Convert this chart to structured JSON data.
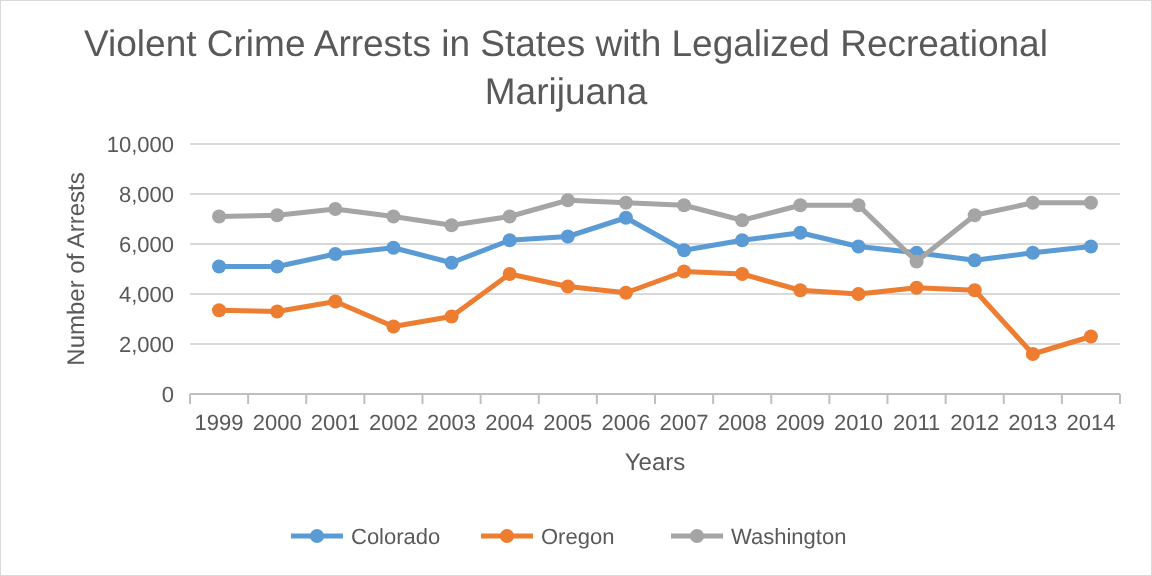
{
  "chart_data": {
    "type": "line",
    "title": "Violent Crime Arrests in States with Legalized Recreational Marijuana",
    "xlabel": "Years",
    "ylabel": "Number of Arrests",
    "categories": [
      "1999",
      "2000",
      "2001",
      "2002",
      "2003",
      "2004",
      "2005",
      "2006",
      "2007",
      "2008",
      "2009",
      "2010",
      "2011",
      "2012",
      "2013",
      "2014"
    ],
    "series": [
      {
        "name": "Colorado",
        "color": "#5b9bd5",
        "values": [
          5100,
          5100,
          5600,
          5850,
          5250,
          6150,
          6300,
          7050,
          5750,
          6150,
          6450,
          5900,
          5650,
          5350,
          5650,
          5900
        ]
      },
      {
        "name": "Oregon",
        "color": "#ed7d31",
        "values": [
          3350,
          3300,
          3700,
          2700,
          3100,
          4800,
          4300,
          4050,
          4900,
          4800,
          4150,
          4000,
          4250,
          4150,
          1600,
          2300
        ]
      },
      {
        "name": "Washington",
        "color": "#a5a5a5",
        "values": [
          7100,
          7150,
          7400,
          7100,
          6750,
          7100,
          7750,
          7650,
          7550,
          6950,
          7550,
          7550,
          5300,
          7150,
          7650,
          7650
        ]
      }
    ],
    "ylim": [
      0,
      10000
    ],
    "yticks": [
      {
        "value": 0,
        "label": "0"
      },
      {
        "value": 2000,
        "label": "2,000"
      },
      {
        "value": 4000,
        "label": "4,000"
      },
      {
        "value": 6000,
        "label": "6,000"
      },
      {
        "value": 8000,
        "label": "8,000"
      },
      {
        "value": 10000,
        "label": "10,000"
      }
    ],
    "grid": "y",
    "legend": "bottom",
    "marker": "circle",
    "line_style": "solid"
  }
}
